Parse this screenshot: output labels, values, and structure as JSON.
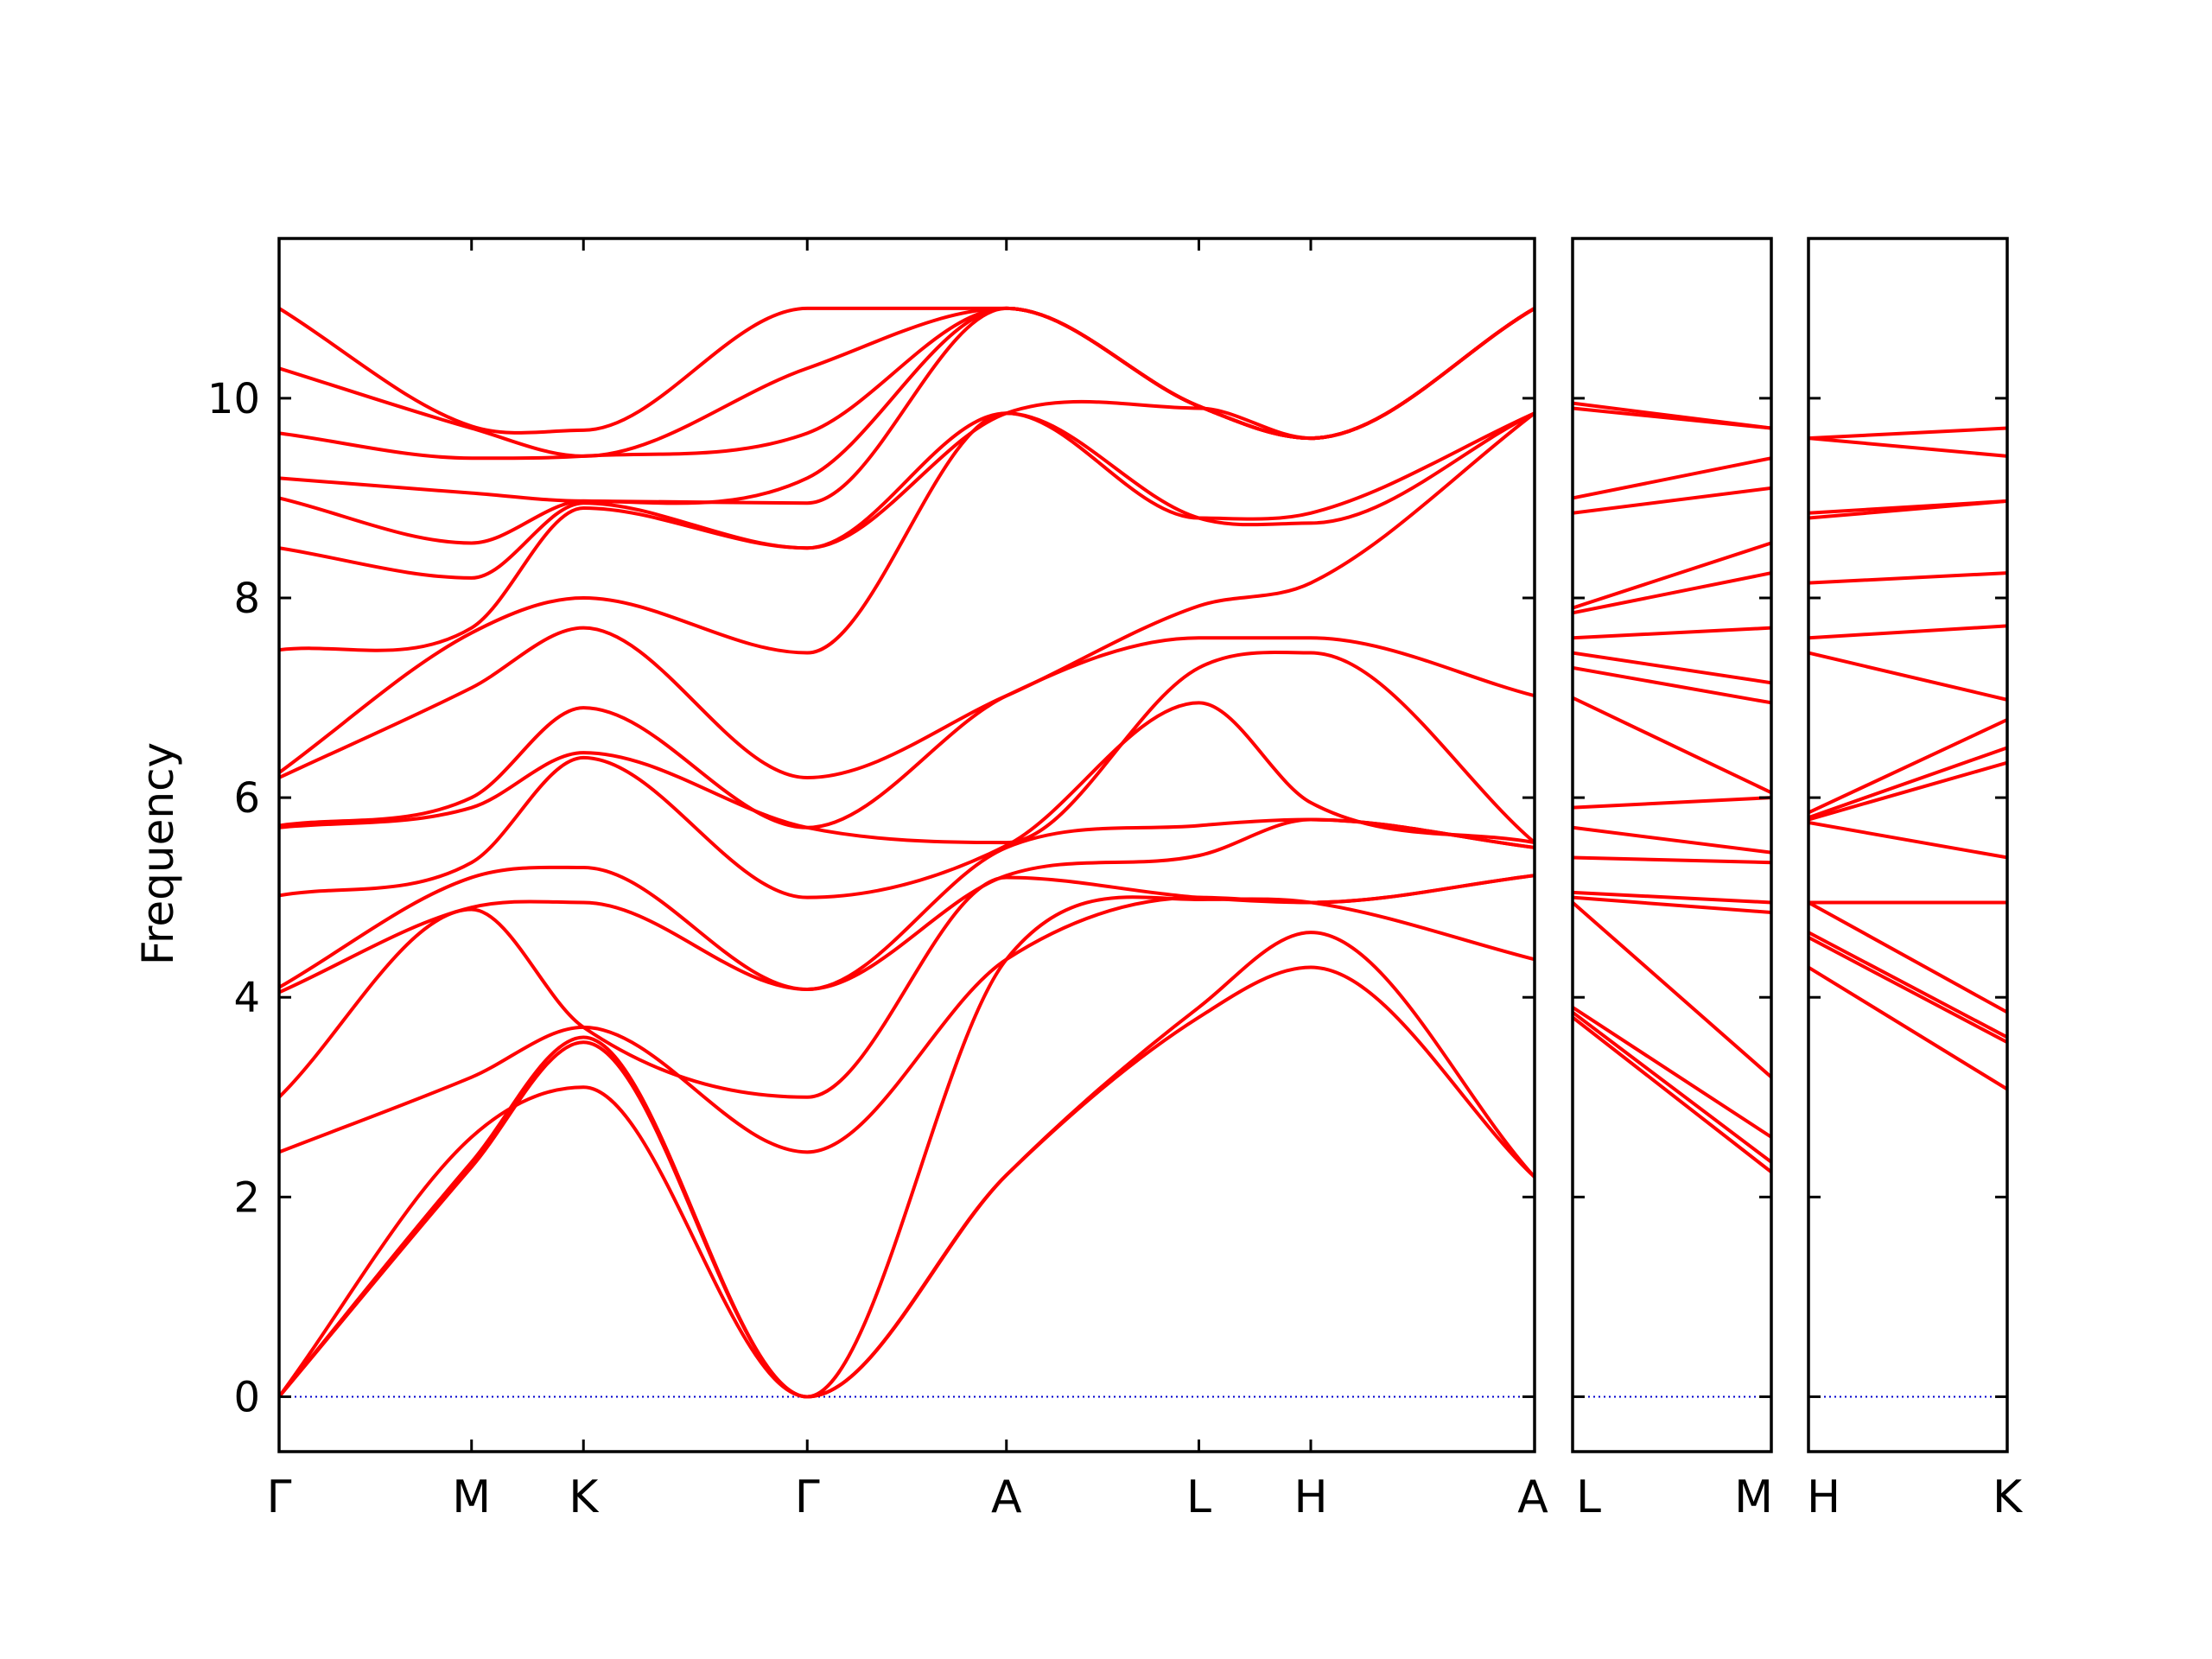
{
  "chart_data": {
    "type": "line",
    "ylabel": "Frequency",
    "ylim": [
      -0.55,
      11.6
    ],
    "yticks": [
      0,
      2,
      4,
      6,
      8,
      10
    ],
    "grid": false,
    "colors": {
      "bands": "#ff0000",
      "zero_line": "#0000cc",
      "axes": "#000000"
    },
    "panels": [
      {
        "path": [
          "Γ",
          "M",
          "K",
          "Γ",
          "A",
          "L",
          "H",
          "A"
        ],
        "segment_lengths": [
          0.86,
          0.5,
          1.0,
          0.89,
          0.86,
          0.5,
          1.0
        ],
        "bands": [
          [
            0,
            2.3,
            3.55,
            0,
            2.22,
            3.8,
            4.3,
            2.2
          ],
          [
            0,
            2.35,
            3.6,
            0,
            2.22,
            3.9,
            4.65,
            2.2
          ],
          [
            0,
            2.6,
            3.1,
            0,
            4.38,
            4.98,
            4.95,
            4.38
          ],
          [
            2.45,
            3.2,
            3.7,
            2.45,
            4.38,
            5.0,
            4.95,
            5.22
          ],
          [
            3.0,
            4.88,
            3.7,
            3.0,
            5.2,
            5.0,
            4.95,
            5.22
          ],
          [
            4.05,
            4.9,
            4.95,
            4.08,
            5.22,
            5.42,
            5.78,
            5.5
          ],
          [
            4.1,
            5.2,
            5.3,
            4.08,
            5.5,
            5.72,
            5.78,
            5.5
          ],
          [
            5.02,
            5.35,
            6.4,
            5.0,
            5.52,
            6.95,
            5.95,
            5.55
          ],
          [
            5.7,
            5.9,
            6.45,
            5.7,
            5.55,
            7.3,
            7.45,
            5.55
          ],
          [
            5.72,
            6.0,
            6.9,
            5.7,
            7.02,
            7.6,
            7.6,
            7.02
          ],
          [
            6.2,
            7.1,
            7.7,
            6.2,
            7.02,
            7.92,
            8.15,
            9.85
          ],
          [
            6.25,
            7.65,
            8.0,
            7.45,
            9.85,
            8.8,
            8.75,
            9.85
          ],
          [
            7.48,
            7.7,
            8.9,
            8.5,
            9.85,
            8.8,
            8.85,
            9.85
          ],
          [
            8.5,
            8.2,
            8.95,
            8.5,
            9.85,
            9.9,
            9.6,
            10.9
          ],
          [
            9.0,
            8.55,
            8.97,
            8.95,
            10.9,
            9.92,
            9.6,
            10.9
          ],
          [
            9.2,
            9.05,
            8.97,
            9.2,
            10.9,
            9.92,
            9.6,
            10.9
          ],
          [
            9.65,
            9.4,
            9.42,
            9.65,
            10.9,
            9.92,
            9.6,
            10.9
          ],
          [
            10.3,
            9.7,
            9.42,
            10.3,
            10.9,
            9.92,
            9.6,
            10.9
          ],
          [
            10.9,
            9.72,
            9.68,
            10.9,
            10.9,
            9.92,
            9.6,
            10.9
          ]
        ]
      },
      {
        "path": [
          "L",
          "M"
        ],
        "segment_lengths": [
          1.0
        ],
        "bands": [
          [
            3.8,
            2.25
          ],
          [
            3.85,
            2.35
          ],
          [
            3.9,
            2.6
          ],
          [
            4.95,
            3.2
          ],
          [
            5.0,
            4.85
          ],
          [
            5.05,
            4.95
          ],
          [
            5.4,
            5.35
          ],
          [
            5.7,
            5.45
          ],
          [
            5.9,
            6.0
          ],
          [
            7.0,
            6.05
          ],
          [
            7.3,
            6.95
          ],
          [
            7.45,
            7.15
          ],
          [
            7.6,
            7.7
          ],
          [
            7.85,
            8.25
          ],
          [
            7.9,
            8.55
          ],
          [
            8.85,
            9.1
          ],
          [
            9.0,
            9.4
          ],
          [
            9.9,
            9.7
          ],
          [
            9.95,
            9.7
          ]
        ]
      },
      {
        "path": [
          "H",
          "K"
        ],
        "segment_lengths": [
          1.0
        ],
        "bands": [
          [
            4.3,
            3.08
          ],
          [
            4.6,
            3.55
          ],
          [
            4.65,
            3.6
          ],
          [
            4.95,
            3.85
          ],
          [
            4.95,
            4.95
          ],
          [
            5.75,
            5.4
          ],
          [
            5.78,
            6.35
          ],
          [
            5.8,
            6.5
          ],
          [
            5.85,
            6.78
          ],
          [
            7.45,
            6.98
          ],
          [
            7.6,
            7.72
          ],
          [
            8.15,
            8.25
          ],
          [
            8.8,
            8.97
          ],
          [
            8.85,
            8.97
          ],
          [
            9.6,
            9.42
          ],
          [
            9.6,
            9.7
          ]
        ]
      }
    ]
  }
}
